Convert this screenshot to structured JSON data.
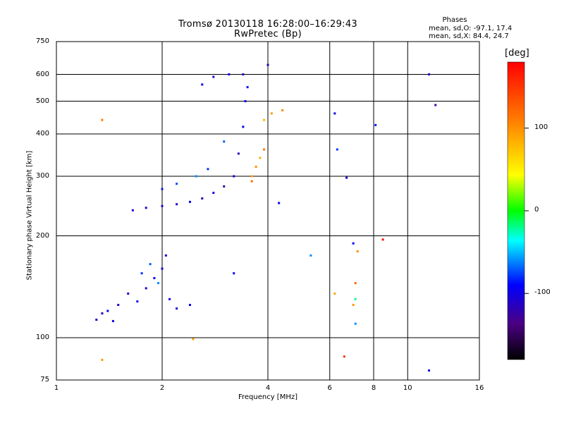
{
  "chart_data": {
    "type": "scatter",
    "title": "Tromsø 20130118 16:28:00–16:29:43",
    "subtitle": "RwPretec (Bp)",
    "xlabel": "Frequency [MHz]",
    "ylabel": "Stationary phase Virtual Height [km]",
    "xscale": "log",
    "yscale": "log",
    "xlim": [
      1,
      16
    ],
    "ylim": [
      75,
      750
    ],
    "xticks": [
      1,
      2,
      4,
      6,
      8,
      10,
      16
    ],
    "xtick_labels": [
      "1",
      "2",
      "4",
      "6",
      "8",
      "10",
      "16"
    ],
    "yticks": [
      75,
      100,
      200,
      300,
      400,
      500,
      600,
      750
    ],
    "ytick_labels": [
      "75",
      "100",
      "200",
      "300",
      "400",
      "500",
      "600",
      "750"
    ],
    "grid": true,
    "stats": {
      "heading": "Phases",
      "o_mode": "mean, sd,O: -97.1, 17.4",
      "x_mode": "mean, sd,X:  84.4, 24.7"
    },
    "colorbar": {
      "label": "[deg]",
      "range": [
        -180,
        180
      ],
      "ticks": [
        100,
        0,
        -100
      ],
      "tick_labels": [
        "100",
        "0",
        "-100"
      ],
      "placement": "right"
    },
    "points": [
      [
        1.3,
        113,
        -105
      ],
      [
        1.35,
        118,
        -110
      ],
      [
        1.4,
        120,
        -95
      ],
      [
        1.45,
        112,
        -100
      ],
      [
        1.5,
        125,
        -108
      ],
      [
        1.6,
        135,
        -102
      ],
      [
        1.7,
        128,
        -97
      ],
      [
        1.8,
        140,
        -110
      ],
      [
        1.9,
        150,
        -90
      ],
      [
        2.0,
        160,
        -100
      ],
      [
        2.05,
        175,
        -105
      ],
      [
        2.1,
        130,
        -99
      ],
      [
        2.2,
        122,
        -104
      ],
      [
        2.4,
        125,
        -95
      ],
      [
        1.75,
        155,
        -80
      ],
      [
        1.85,
        165,
        -70
      ],
      [
        1.95,
        145,
        -60
      ],
      [
        1.65,
        238,
        -105
      ],
      [
        1.8,
        242,
        -110
      ],
      [
        2.0,
        245,
        -100
      ],
      [
        2.2,
        248,
        -108
      ],
      [
        2.4,
        252,
        -95
      ],
      [
        2.6,
        258,
        -112
      ],
      [
        2.8,
        268,
        -100
      ],
      [
        3.0,
        280,
        -115
      ],
      [
        3.2,
        300,
        -105
      ],
      [
        3.3,
        350,
        -110
      ],
      [
        3.4,
        420,
        -100
      ],
      [
        3.45,
        500,
        -90
      ],
      [
        3.5,
        550,
        -95
      ],
      [
        2.0,
        275,
        -85
      ],
      [
        2.2,
        285,
        -75
      ],
      [
        2.5,
        300,
        -60
      ],
      [
        2.7,
        315,
        -80
      ],
      [
        3.0,
        380,
        -70
      ],
      [
        2.6,
        560,
        -95
      ],
      [
        2.8,
        590,
        -105
      ],
      [
        3.1,
        600,
        -100
      ],
      [
        3.4,
        600,
        -110
      ],
      [
        3.6,
        300,
        90
      ],
      [
        3.7,
        320,
        100
      ],
      [
        3.8,
        340,
        85
      ],
      [
        3.9,
        360,
        110
      ],
      [
        4.1,
        460,
        95
      ],
      [
        4.4,
        470,
        105
      ],
      [
        3.9,
        440,
        80
      ],
      [
        3.6,
        290,
        120
      ],
      [
        1.35,
        440,
        110
      ],
      [
        2.45,
        99,
        85
      ],
      [
        1.35,
        86,
        95
      ],
      [
        6.2,
        135,
        90
      ],
      [
        6.6,
        88,
        150
      ],
      [
        7.2,
        180,
        100
      ],
      [
        7.1,
        145,
        120
      ],
      [
        7.0,
        125,
        95
      ],
      [
        6.2,
        460,
        -100
      ],
      [
        6.3,
        360,
        -80
      ],
      [
        6.7,
        297,
        -105
      ],
      [
        7.0,
        190,
        -90
      ],
      [
        7.1,
        110,
        -60
      ],
      [
        7.1,
        130,
        -20
      ],
      [
        8.1,
        425,
        -85
      ],
      [
        8.5,
        195,
        175
      ],
      [
        11.5,
        600,
        -110
      ],
      [
        11.5,
        80,
        -100
      ],
      [
        12.0,
        487,
        -130
      ],
      [
        4.3,
        250,
        -95
      ],
      [
        5.3,
        175,
        -60
      ],
      [
        4.0,
        640,
        -120
      ],
      [
        3.2,
        155,
        -90
      ]
    ]
  }
}
